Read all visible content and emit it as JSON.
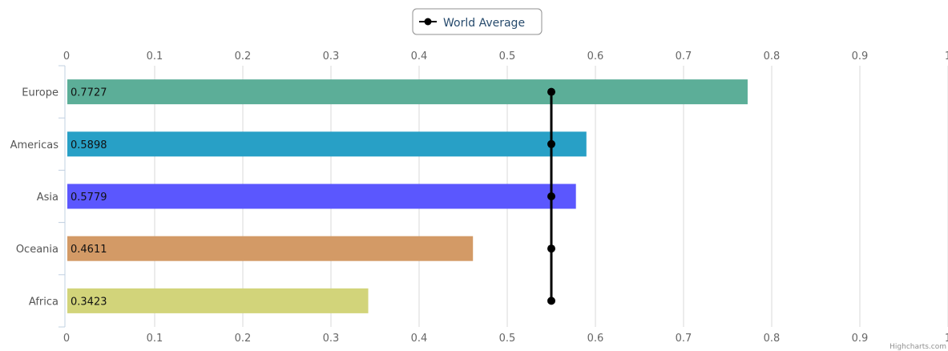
{
  "chart_data": {
    "type": "bar",
    "orientation": "horizontal",
    "categories": [
      "Europe",
      "Americas",
      "Asia",
      "Oceania",
      "Africa"
    ],
    "series": [
      {
        "values": [
          0.7727,
          0.5898,
          0.5779,
          0.4611,
          0.3423
        ],
        "data_labels": [
          "0.7727",
          "0.5898",
          "0.5779",
          "0.4611",
          "0.3423"
        ],
        "colors": [
          "#5cae98",
          "#28a0c6",
          "#5b57fe",
          "#d39a66",
          "#d2d47a"
        ]
      },
      {
        "name": "World Average",
        "type": "line",
        "values": [
          0.55,
          0.55,
          0.55,
          0.55,
          0.55
        ],
        "color": "#000000"
      }
    ],
    "xlim": [
      0,
      1
    ],
    "ticks": [
      "0",
      "0.1",
      "0.2",
      "0.3",
      "0.4",
      "0.5",
      "0.6",
      "0.7",
      "0.8",
      "0.9",
      "1"
    ],
    "grid": true,
    "axis_labels_top_and_bottom": true,
    "legend": {
      "placement": "top-center",
      "items": [
        "World Average"
      ]
    },
    "credits": "Highcharts.com"
  }
}
